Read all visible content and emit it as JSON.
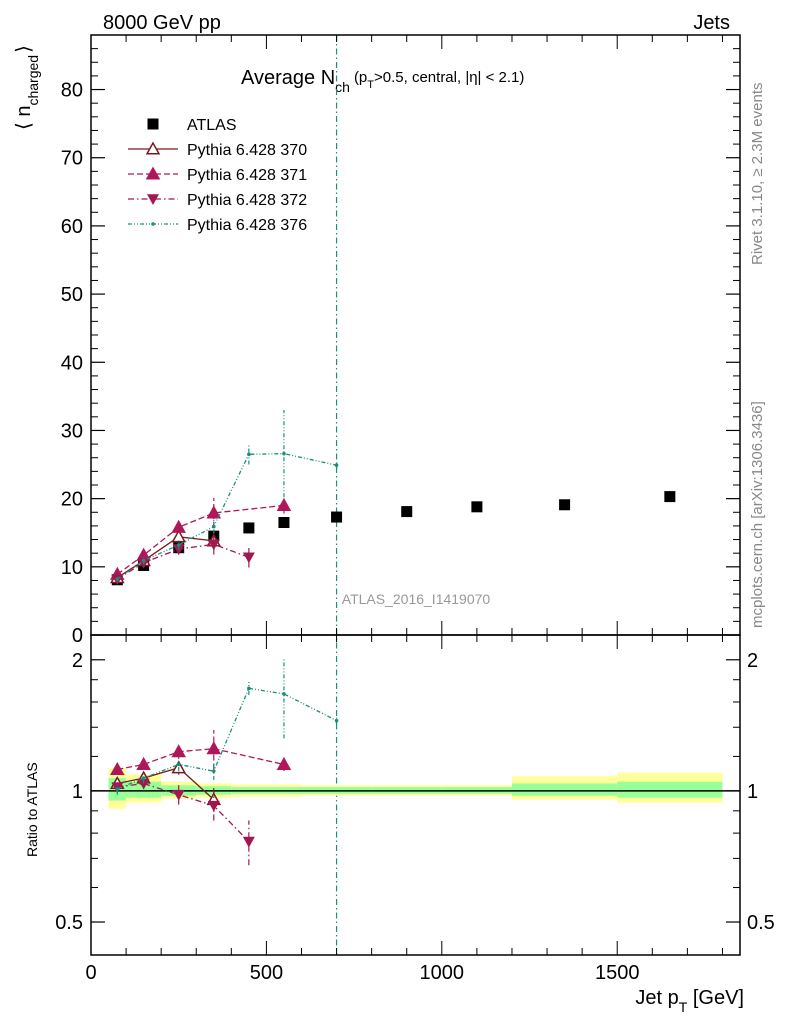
{
  "header": {
    "left": "8000 GeV pp",
    "right": "Jets"
  },
  "side_labels": {
    "rivet": "Rivet 3.1.10, ≥ 2.3M events",
    "mcplots": "mcplots.cern.ch [arXiv:1306.3436]"
  },
  "colors": {
    "atlas": "#000000",
    "p370": "#7a1a1a",
    "p371": "#b0175a",
    "p372": "#a01850",
    "p376": "#17907c",
    "band_inner": "#99ff99",
    "band_outer": "#ffff99"
  },
  "chart_data": [
    {
      "type": "scatter",
      "title": "Average N",
      "title_sub": "ch",
      "title_cond_pre": "(p",
      "title_cond_sub": "T",
      "title_cond_post": ">0.5, central, |η| < 2.1)",
      "ylabel": "⟨ n",
      "ylabel_sub": "charged",
      "ylabel_post": "⟩",
      "xlim": [
        0,
        1850
      ],
      "ylim": [
        0,
        88
      ],
      "yticks": [
        0,
        10,
        20,
        30,
        40,
        50,
        60,
        70,
        80
      ],
      "watermark": "ATLAS_2016_I1419070",
      "vertical_line_x": 700,
      "legend_position": "top-left",
      "series": [
        {
          "name": "ATLAS",
          "style": "data",
          "x": [
            75,
            150,
            250,
            350,
            450,
            550,
            700,
            900,
            1100,
            1350,
            1650
          ],
          "y": [
            8.1,
            10.2,
            12.8,
            14.5,
            15.7,
            16.5,
            17.3,
            18.1,
            18.8,
            19.1,
            20.3
          ]
        },
        {
          "name": "Pythia 6.428 370",
          "style": "solid",
          "marker": "triangle-up-open",
          "x": [
            75,
            150,
            250,
            350
          ],
          "y": [
            8.4,
            10.9,
            14.4,
            13.8
          ],
          "err": [
            0.4,
            0.5,
            0.8,
            1.2
          ]
        },
        {
          "name": "Pythia 6.428 371",
          "style": "dashed",
          "marker": "triangle-up",
          "x": [
            75,
            150,
            250,
            350,
            550
          ],
          "y": [
            8.9,
            11.7,
            15.8,
            17.9,
            19.0
          ],
          "err": [
            0.4,
            0.5,
            0.8,
            2.2,
            1.2
          ]
        },
        {
          "name": "Pythia 6.428 372",
          "style": "dashdot",
          "marker": "triangle-down",
          "x": [
            75,
            150,
            250,
            350,
            450
          ],
          "y": [
            8.2,
            10.6,
            12.6,
            13.3,
            11.4
          ],
          "err": [
            0.4,
            0.5,
            0.8,
            1.5,
            1.5
          ]
        },
        {
          "name": "Pythia 6.428 376",
          "style": "dashdotdot",
          "marker": "dot",
          "x": [
            75,
            150,
            250,
            350,
            450,
            550,
            700
          ],
          "y": [
            8.2,
            10.9,
            13.2,
            15.9,
            26.5,
            26.6,
            24.9
          ],
          "err": [
            0.4,
            0.5,
            0.7,
            1.0,
            1.5,
            6.4,
            0.6
          ]
        }
      ]
    },
    {
      "type": "scatter",
      "ylabel": "Ratio to ATLAS",
      "xlabel": "Jet p",
      "xlabel_sub": "T",
      "xlabel_post": " [GeV]",
      "xlim": [
        0,
        1850
      ],
      "ylim": [
        0.42,
        2.28
      ],
      "yscale": "log",
      "yticks": [
        0.5,
        1,
        2
      ],
      "xticks": [
        0,
        500,
        1000,
        1500
      ],
      "bands": [
        {
          "x0": 50,
          "x1": 100,
          "inner": [
            0.95,
            1.07
          ],
          "outer": [
            0.91,
            1.13
          ]
        },
        {
          "x0": 100,
          "x1": 200,
          "inner": [
            0.965,
            1.05
          ],
          "outer": [
            0.94,
            1.09
          ]
        },
        {
          "x0": 200,
          "x1": 300,
          "inner": [
            0.975,
            1.03
          ],
          "outer": [
            0.96,
            1.05
          ]
        },
        {
          "x0": 300,
          "x1": 400,
          "inner": [
            0.98,
            1.025
          ],
          "outer": [
            0.965,
            1.04
          ]
        },
        {
          "x0": 400,
          "x1": 500,
          "inner": [
            0.985,
            1.02
          ],
          "outer": [
            0.97,
            1.035
          ]
        },
        {
          "x0": 500,
          "x1": 600,
          "inner": [
            0.985,
            1.02
          ],
          "outer": [
            0.97,
            1.035
          ]
        },
        {
          "x0": 600,
          "x1": 800,
          "inner": [
            0.985,
            1.02
          ],
          "outer": [
            0.975,
            1.03
          ]
        },
        {
          "x0": 800,
          "x1": 1000,
          "inner": [
            0.985,
            1.02
          ],
          "outer": [
            0.975,
            1.03
          ]
        },
        {
          "x0": 1000,
          "x1": 1200,
          "inner": [
            0.985,
            1.02
          ],
          "outer": [
            0.975,
            1.03
          ]
        },
        {
          "x0": 1200,
          "x1": 1500,
          "inner": [
            0.975,
            1.04
          ],
          "outer": [
            0.955,
            1.08
          ]
        },
        {
          "x0": 1500,
          "x1": 1800,
          "inner": [
            0.965,
            1.05
          ],
          "outer": [
            0.94,
            1.1
          ]
        }
      ],
      "series": [
        {
          "name": "Pythia 6.428 370",
          "x": [
            75,
            150,
            250,
            350
          ],
          "y": [
            1.04,
            1.07,
            1.13,
            0.955
          ],
          "err": [
            0.03,
            0.03,
            0.04,
            0.06
          ]
        },
        {
          "name": "Pythia 6.428 371",
          "x": [
            75,
            150,
            250,
            350,
            550
          ],
          "y": [
            1.12,
            1.15,
            1.23,
            1.25,
            1.15
          ],
          "err": [
            0.03,
            0.03,
            0.04,
            0.13,
            0.04
          ]
        },
        {
          "name": "Pythia 6.428 372",
          "x": [
            75,
            150,
            250,
            350,
            450
          ],
          "y": [
            1.02,
            1.04,
            0.98,
            0.925,
            0.765
          ],
          "err": [
            0.03,
            0.03,
            0.05,
            0.07,
            0.09
          ]
        },
        {
          "name": "Pythia 6.428 376",
          "x": [
            75,
            150,
            250,
            350,
            450,
            550,
            700
          ],
          "y": [
            1.01,
            1.07,
            1.15,
            1.11,
            1.72,
            1.67,
            1.45
          ],
          "err": [
            0.03,
            0.03,
            0.04,
            0.05,
            0.06,
            0.35,
            0.03
          ]
        }
      ]
    }
  ]
}
